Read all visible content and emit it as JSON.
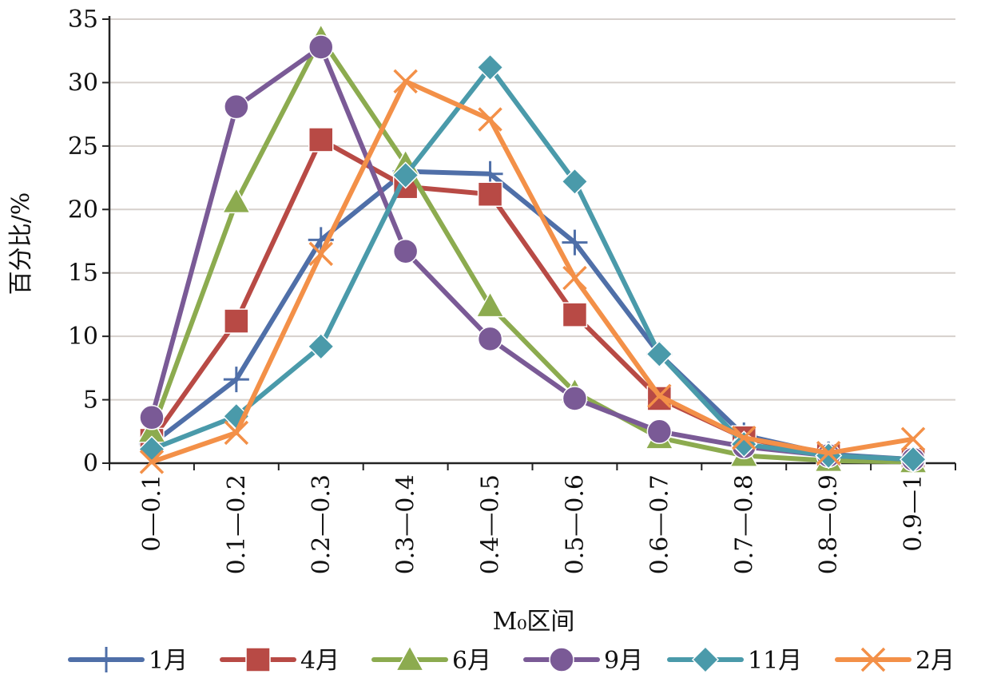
{
  "chart_data": {
    "type": "line",
    "title": "",
    "xlabel": "M₀区间",
    "ylabel": "百分比/%",
    "ylim": [
      0,
      35
    ],
    "yticks": [
      0,
      5,
      10,
      15,
      20,
      25,
      30,
      35
    ],
    "grid": "horizontal",
    "legend_position": "bottom",
    "categories": [
      "0—0.1",
      "0.1—0.2",
      "0.2—0.3",
      "0.3—0.4",
      "0.4—0.5",
      "0.5—0.6",
      "0.6—0.7",
      "0.7—0.8",
      "0.8—0.9",
      "0.9—1"
    ],
    "series": [
      {
        "name": "1月",
        "color": "#4f6fa8",
        "marker": "plus",
        "values": [
          1.5,
          6.6,
          17.6,
          23.0,
          22.8,
          17.4,
          8.6,
          2.2,
          0.7,
          0.3
        ]
      },
      {
        "name": "4月",
        "color": "#b84a45",
        "marker": "square",
        "values": [
          1.8,
          11.2,
          25.5,
          21.8,
          21.2,
          11.7,
          5.1,
          2.0,
          0.6,
          0.3
        ]
      },
      {
        "name": "6月",
        "color": "#8cab4f",
        "marker": "triangle",
        "values": [
          2.5,
          20.6,
          33.5,
          23.6,
          12.4,
          5.6,
          2.0,
          0.6,
          0.2,
          0.1
        ]
      },
      {
        "name": "9月",
        "color": "#7a5a96",
        "marker": "circle",
        "values": [
          3.6,
          28.1,
          32.8,
          16.7,
          9.8,
          5.1,
          2.5,
          1.3,
          0.6,
          0.3
        ]
      },
      {
        "name": "11月",
        "color": "#4a9aaa",
        "marker": "diamond",
        "values": [
          1.1,
          3.7,
          9.2,
          22.7,
          31.2,
          22.2,
          8.6,
          1.5,
          0.6,
          0.3
        ]
      },
      {
        "name": "2月",
        "color": "#f39048",
        "marker": "x",
        "values": [
          0.1,
          2.4,
          16.5,
          30.1,
          27.1,
          14.6,
          5.3,
          2.0,
          0.8,
          1.9
        ]
      }
    ]
  }
}
